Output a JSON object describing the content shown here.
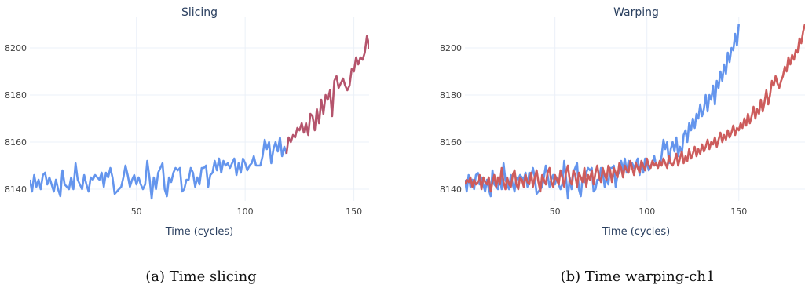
{
  "chart_data": [
    {
      "type": "line",
      "title": "Slicing",
      "caption": "(a) Time slicing",
      "xlabel": "Time (cycles)",
      "ylabel": "",
      "xlim": [
        1,
        157
      ],
      "ylim": [
        8135,
        8213
      ],
      "xticks": [
        50,
        100,
        150
      ],
      "yticks": [
        8140,
        8160,
        8180,
        8200
      ],
      "grid": true,
      "legend": "none",
      "series": [
        {
          "color": "#6495ED",
          "x_start": 1,
          "values": [
            8144,
            8139,
            8146,
            8141,
            8144,
            8140,
            8146,
            8147,
            8142,
            8145,
            8142,
            8139,
            8144,
            8140,
            8137,
            8148,
            8142,
            8141,
            8140,
            8145,
            8140,
            8151,
            8144,
            8142,
            8140,
            8146,
            8142,
            8139,
            8145,
            8144,
            8146,
            8145,
            8144,
            8147,
            8141,
            8147,
            8145,
            8149,
            8145,
            8138,
            8139,
            8140,
            8141,
            8145,
            8150,
            8146,
            8141,
            8144,
            8146,
            8142,
            8145,
            8142,
            8140,
            8142,
            8152,
            8145,
            8136,
            8145,
            8140,
            8147,
            8149,
            8151,
            8140,
            8137,
            8145,
            8143,
            8147,
            8149,
            8148,
            8149,
            8139,
            8140,
            8144,
            8144,
            8149,
            8147,
            8141,
            8145,
            8142,
            8149,
            8149,
            8150,
            8141,
            8146,
            8147,
            8152,
            8148,
            8153,
            8147,
            8152,
            8150,
            8151,
            8149,
            8151,
            8153,
            8146,
            8151,
            8147,
            8153,
            8151,
            8148,
            8150,
            8151,
            8154,
            8150,
            8150,
            8150,
            8154,
            8161,
            8157,
            8160,
            8151,
            8157,
            8160,
            8156,
            8162,
            8154,
            8158,
            8155
          ]
        },
        {
          "color": "#B5546C",
          "x_start": 119,
          "values": [
            8155,
            8162,
            8160,
            8163,
            8162,
            8166,
            8165,
            8168,
            8164,
            8168,
            8163,
            8172,
            8171,
            8165,
            8174,
            8168,
            8178,
            8172,
            8180,
            8178,
            8182,
            8171,
            8186,
            8188,
            8183,
            8185,
            8187,
            8184,
            8182,
            8184,
            8191,
            8190,
            8196,
            8193,
            8196,
            8195,
            8198,
            8205,
            8200,
            8210
          ]
        }
      ]
    },
    {
      "type": "line",
      "title": "Warping",
      "caption": "(b) Time warping-ch1",
      "xlabel": "Time (cycles)",
      "ylabel": "",
      "xlim": [
        1,
        186
      ],
      "ylim": [
        8135,
        8213
      ],
      "xticks": [
        50,
        100,
        150
      ],
      "yticks": [
        8140,
        8160,
        8180,
        8200
      ],
      "grid": true,
      "legend": "none",
      "series": [
        {
          "color": "#6495ED",
          "x_start": 1,
          "values": [
            8144,
            8139,
            8146,
            8141,
            8144,
            8140,
            8146,
            8147,
            8142,
            8145,
            8142,
            8139,
            8144,
            8140,
            8137,
            8148,
            8142,
            8141,
            8140,
            8145,
            8140,
            8151,
            8144,
            8142,
            8140,
            8146,
            8142,
            8139,
            8145,
            8144,
            8146,
            8145,
            8144,
            8147,
            8141,
            8147,
            8145,
            8149,
            8145,
            8138,
            8139,
            8140,
            8141,
            8145,
            8150,
            8146,
            8141,
            8144,
            8146,
            8142,
            8145,
            8142,
            8140,
            8142,
            8152,
            8145,
            8136,
            8145,
            8140,
            8147,
            8149,
            8151,
            8140,
            8137,
            8145,
            8143,
            8147,
            8149,
            8148,
            8149,
            8139,
            8140,
            8144,
            8144,
            8149,
            8147,
            8141,
            8145,
            8142,
            8149,
            8149,
            8150,
            8141,
            8146,
            8147,
            8152,
            8148,
            8153,
            8147,
            8152,
            8150,
            8151,
            8149,
            8151,
            8153,
            8146,
            8151,
            8147,
            8153,
            8151,
            8148,
            8150,
            8151,
            8154,
            8150,
            8150,
            8150,
            8154,
            8161,
            8157,
            8160,
            8151,
            8157,
            8160,
            8156,
            8162,
            8154,
            8158,
            8155,
            8163,
            8165,
            8160,
            8168,
            8165,
            8170,
            8166,
            8172,
            8170,
            8176,
            8171,
            8174,
            8180,
            8173,
            8180,
            8178,
            8184,
            8176,
            8186,
            8183,
            8190,
            8186,
            8193,
            8189,
            8198,
            8194,
            8200,
            8199,
            8206,
            8201,
            8210
          ]
        },
        {
          "color": "#CD5C5C",
          "x_start": 1,
          "values": [
            8142,
            8144,
            8143,
            8145,
            8141,
            8144,
            8142,
            8143,
            8146,
            8140,
            8145,
            8143,
            8142,
            8145,
            8139,
            8143,
            8146,
            8141,
            8145,
            8142,
            8149,
            8143,
            8140,
            8145,
            8142,
            8141,
            8146,
            8148,
            8142,
            8140,
            8145,
            8144,
            8141,
            8146,
            8143,
            8142,
            8147,
            8141,
            8145,
            8148,
            8143,
            8139,
            8146,
            8144,
            8142,
            8147,
            8149,
            8143,
            8141,
            8146,
            8144,
            8142,
            8148,
            8145,
            8141,
            8147,
            8150,
            8144,
            8142,
            8148,
            8146,
            8141,
            8147,
            8145,
            8143,
            8149,
            8141,
            8146,
            8144,
            8148,
            8142,
            8147,
            8150,
            8145,
            8143,
            8149,
            8146,
            8144,
            8150,
            8148,
            8143,
            8149,
            8147,
            8145,
            8151,
            8149,
            8145,
            8150,
            8148,
            8147,
            8152,
            8149,
            8146,
            8151,
            8149,
            8147,
            8152,
            8150,
            8148,
            8153,
            8150,
            8149,
            8152,
            8150,
            8151,
            8149,
            8152,
            8150,
            8153,
            8151,
            8149,
            8154,
            8151,
            8150,
            8152,
            8155,
            8150,
            8153,
            8156,
            8151,
            8154,
            8152,
            8157,
            8153,
            8155,
            8158,
            8154,
            8157,
            8155,
            8159,
            8156,
            8158,
            8161,
            8157,
            8160,
            8159,
            8162,
            8158,
            8161,
            8164,
            8160,
            8163,
            8161,
            8165,
            8162,
            8164,
            8167,
            8163,
            8166,
            8165,
            8168,
            8166,
            8170,
            8167,
            8172,
            8168,
            8171,
            8175,
            8170,
            8174,
            8172,
            8178,
            8173,
            8177,
            8182,
            8176,
            8180,
            8186,
            8184,
            8188,
            8185,
            8183,
            8186,
            8188,
            8192,
            8190,
            8196,
            8193,
            8197,
            8195,
            8199,
            8198,
            8204,
            8202,
            8207,
            8210
          ]
        }
      ]
    }
  ]
}
